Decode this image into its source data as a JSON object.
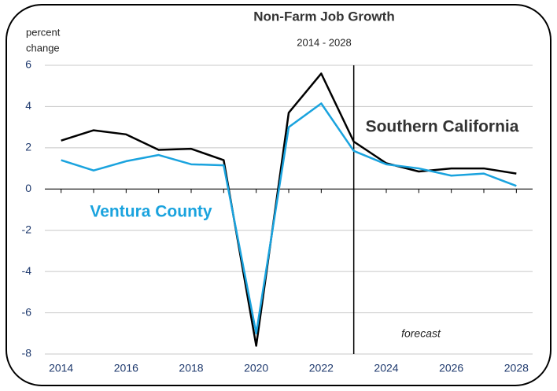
{
  "chart_data": {
    "type": "line",
    "title": "Non-Farm Job Growth",
    "subtitle": "2014 - 2028",
    "y_label": [
      "percent",
      "change"
    ],
    "x": [
      2014,
      2015,
      2016,
      2017,
      2018,
      2019,
      2020,
      2021,
      2022,
      2023,
      2024,
      2025,
      2026,
      2027,
      2028
    ],
    "series": [
      {
        "name": "Southern California",
        "color": "#000000",
        "label_color": "#333333",
        "values": [
          2.35,
          2.85,
          2.65,
          1.9,
          1.95,
          1.4,
          -7.6,
          3.7,
          5.6,
          2.3,
          1.25,
          0.85,
          1.0,
          1.0,
          0.75
        ]
      },
      {
        "name": "Ventura County",
        "color": "#1aa3de",
        "label_color": "#1aa3de",
        "values": [
          1.4,
          0.9,
          1.35,
          1.65,
          1.2,
          1.15,
          -7.0,
          3.0,
          4.15,
          1.85,
          1.2,
          1.0,
          0.65,
          0.75,
          0.15
        ]
      }
    ],
    "xlim": [
      2013.5,
      2028.5
    ],
    "xticks": [
      2014,
      2016,
      2018,
      2020,
      2022,
      2024,
      2026,
      2028
    ],
    "ylim": [
      -8,
      6
    ],
    "yticks": [
      -8,
      -6,
      -4,
      -2,
      0,
      2,
      4,
      6
    ],
    "grid": true,
    "forecast_start": 2023,
    "annotation": "forecast"
  }
}
